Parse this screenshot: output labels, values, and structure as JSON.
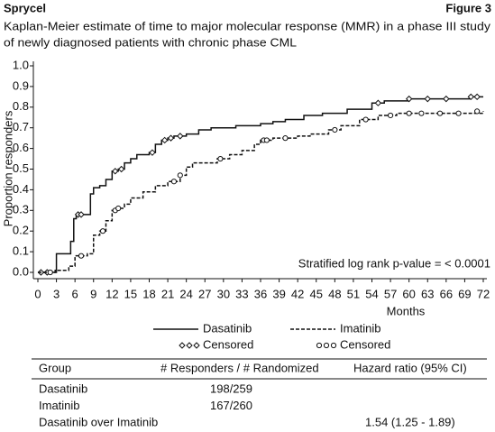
{
  "header": {
    "left": "Sprycel",
    "right": "Figure 3"
  },
  "chart_data": {
    "type": "step",
    "title": [
      "Kaplan-Meier estimate of time to major molecular response (MMR) in a phase III study",
      "of newly diagnosed patients with chronic phase CML"
    ],
    "x_label": "Months",
    "y_label": "Proportion responders",
    "annotation": "Stratified log rank p-value = < 0.0001",
    "xlim": [
      0,
      72
    ],
    "ylim": [
      0,
      1
    ],
    "xticks": [
      0,
      3,
      6,
      9,
      12,
      15,
      18,
      21,
      24,
      27,
      30,
      33,
      36,
      39,
      42,
      45,
      48,
      51,
      54,
      57,
      60,
      63,
      66,
      69,
      72
    ],
    "yticks": [
      {
        "value": 0,
        "label": "0.0"
      },
      0.1,
      0.2,
      0.3,
      0.4,
      0.5,
      0.6,
      0.7,
      0.8,
      0.9,
      {
        "value": 1,
        "label": "1.0"
      }
    ],
    "series": [
      {
        "name": "Dasatinib",
        "color": "#111111",
        "line_style": "solid",
        "x": [
          0,
          2.8,
          3,
          5,
          5.3,
          5.8,
          6.2,
          8,
          8.5,
          9,
          10,
          11,
          12,
          13,
          14,
          15,
          16,
          18,
          19,
          20,
          21,
          22,
          24,
          26,
          28,
          32,
          36,
          38,
          40,
          43,
          46,
          50,
          54,
          56,
          60,
          70,
          72
        ],
        "values": [
          0,
          0.01,
          0.09,
          0.09,
          0.15,
          0.26,
          0.28,
          0.28,
          0.38,
          0.41,
          0.42,
          0.45,
          0.49,
          0.5,
          0.53,
          0.55,
          0.57,
          0.58,
          0.62,
          0.64,
          0.65,
          0.66,
          0.67,
          0.69,
          0.7,
          0.71,
          0.72,
          0.73,
          0.74,
          0.76,
          0.77,
          0.79,
          0.82,
          0.83,
          0.84,
          0.85,
          0.85
        ],
        "censored": {
          "label": "Censored",
          "marker": "diamond",
          "x": [
            0.5,
            1.5,
            6.5,
            7,
            12.5,
            13.5,
            18.5,
            20.5,
            21.5,
            23,
            55,
            60,
            63,
            66,
            70,
            71
          ],
          "y": [
            0,
            0,
            0.28,
            0.28,
            0.49,
            0.5,
            0.58,
            0.64,
            0.65,
            0.66,
            0.82,
            0.84,
            0.84,
            0.84,
            0.85,
            0.85
          ]
        }
      },
      {
        "name": "Imatinib",
        "color": "#111111",
        "line_style": "dashed",
        "x": [
          0,
          3,
          5,
          6,
          8,
          9,
          10,
          11,
          12,
          13,
          14,
          15,
          17,
          19,
          21,
          23,
          24,
          25,
          29,
          31,
          33,
          35,
          36,
          38,
          42,
          44,
          47,
          49,
          52,
          55,
          58,
          72
        ],
        "values": [
          0,
          0.01,
          0.03,
          0.08,
          0.09,
          0.18,
          0.2,
          0.25,
          0.3,
          0.31,
          0.33,
          0.36,
          0.39,
          0.42,
          0.44,
          0.47,
          0.51,
          0.53,
          0.55,
          0.57,
          0.59,
          0.62,
          0.64,
          0.65,
          0.66,
          0.67,
          0.69,
          0.71,
          0.74,
          0.76,
          0.77,
          0.78
        ],
        "censored": {
          "label": "Censored",
          "marker": "circle",
          "x": [
            2,
            7,
            10.5,
            12.5,
            13,
            22,
            23,
            29.5,
            36.5,
            37,
            40,
            48,
            53,
            57,
            60,
            62,
            65,
            68,
            71
          ],
          "y": [
            0,
            0.08,
            0.2,
            0.3,
            0.31,
            0.44,
            0.47,
            0.55,
            0.64,
            0.64,
            0.65,
            0.69,
            0.74,
            0.76,
            0.77,
            0.77,
            0.77,
            0.77,
            0.78
          ]
        }
      }
    ]
  },
  "table": {
    "header": {
      "group": "Group",
      "responders": "# Responders / # Randomized",
      "hazard_ratio": "Hazard ratio (95% CI)"
    },
    "rows": [
      {
        "group": "Dasatinib",
        "responders": "198/259"
      },
      {
        "group": "Imatinib",
        "responders": "167/260"
      },
      {
        "group": "Dasatinib over Imatinib",
        "hazard_ratio": "1.54 (1.25 - 1.89)"
      }
    ]
  }
}
